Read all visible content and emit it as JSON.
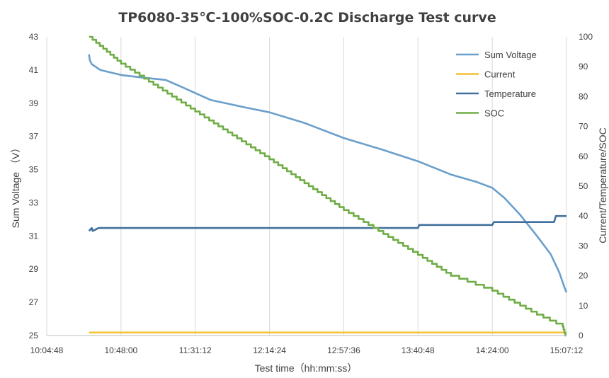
{
  "chart_data": {
    "type": "line",
    "title": "TP6080-35℃-100%SOC-0.2C  Discharge  Test   curve",
    "xlabel": "Test time（hh:mm:ss）",
    "ylabel_left": "Sum Voltage （V）",
    "ylabel_right": "Current/Temperature/SOC",
    "x_ticks": [
      "10:04:48",
      "10:48:00",
      "11:31:12",
      "12:14:24",
      "12:57:36",
      "13:40:48",
      "14:24:00",
      "15:07:12"
    ],
    "xlim": [
      "10:04:48",
      "15:07:12"
    ],
    "ylim_left": [
      25,
      43
    ],
    "y_ticks_left": [
      "25",
      "27",
      "29",
      "31",
      "33",
      "35",
      "37",
      "39",
      "41",
      "43"
    ],
    "ylim_right": [
      0,
      100
    ],
    "y_ticks_right": [
      "0",
      "10",
      "20",
      "30",
      "40",
      "50",
      "60",
      "70",
      "80",
      "90",
      "100"
    ],
    "grid": "vertical",
    "legend_position": "top-right",
    "series": [
      {
        "name": "Sum Voltage",
        "axis": "left",
        "color": "#6a9fcb",
        "x": [
          "10:29:24",
          "10:29:50",
          "10:31:00",
          "10:36:00",
          "10:48:00",
          "11:00:00",
          "11:14:00",
          "11:25:00",
          "11:40:00",
          "12:00:00",
          "12:14:24",
          "12:35:00",
          "12:57:36",
          "13:20:00",
          "13:40:48",
          "14:00:00",
          "14:15:00",
          "14:24:00",
          "14:31:00",
          "14:40:00",
          "14:50:00",
          "14:58:00",
          "15:03:00",
          "15:06:00",
          "15:07:12"
        ],
        "values": [
          41.95,
          41.6,
          41.35,
          41.0,
          40.7,
          40.55,
          40.4,
          39.9,
          39.2,
          38.75,
          38.45,
          37.8,
          36.9,
          36.2,
          35.5,
          34.7,
          34.25,
          33.9,
          33.3,
          32.3,
          31.0,
          29.9,
          28.8,
          27.9,
          27.6
        ]
      },
      {
        "name": "Current",
        "axis": "right",
        "color": "#f2c230",
        "x": [
          "10:29:24",
          "15:07:12"
        ],
        "values": [
          1,
          1
        ]
      },
      {
        "name": "Temperature",
        "axis": "right",
        "color": "#41719c",
        "x": [
          "10:29:24",
          "10:31:00",
          "10:31:30",
          "10:35:00",
          "12:20:00",
          "12:20:30",
          "13:40:48",
          "13:41:30",
          "14:24:00",
          "14:25:00",
          "14:42:00",
          "14:43:00",
          "15:00:00",
          "15:01:00",
          "15:07:12"
        ],
        "values": [
          35,
          36,
          35,
          36,
          36,
          36,
          36,
          37,
          37,
          38,
          38,
          38,
          38,
          40,
          40
        ]
      },
      {
        "name": "SOC",
        "axis": "right",
        "color": "#70ad47",
        "x": [
          "10:29:24",
          "10:48:00",
          "11:31:12",
          "12:14:24",
          "12:57:36",
          "13:40:48",
          "14:00:00",
          "14:24:00",
          "14:50:00",
          "15:05:00",
          "15:06:30",
          "15:07:12"
        ],
        "values": [
          100,
          91,
          75,
          59,
          42,
          27,
          20,
          15,
          7,
          3,
          0,
          0
        ]
      }
    ]
  }
}
